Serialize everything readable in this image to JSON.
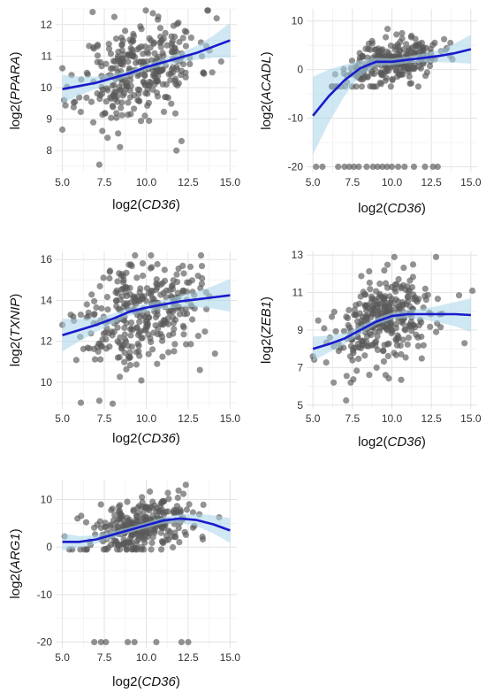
{
  "chart_data": [
    {
      "type": "scatter",
      "gene": "PPARA",
      "xlabel": {
        "prefix": "log2(",
        "gene": "CD36",
        "suffix": ")"
      },
      "ylabel": {
        "prefix": "log2(",
        "gene": "PPARA",
        "suffix": ")"
      },
      "xlim": [
        4.6,
        15.4
      ],
      "ylim": [
        7.3,
        12.5
      ],
      "xticks": [
        5.0,
        7.5,
        10.0,
        12.5,
        15.0
      ],
      "yticks": [
        8,
        9,
        10,
        11,
        12
      ],
      "grid": true,
      "points": {
        "n": 320,
        "seed": 11,
        "xmean": 9.6,
        "xsd": 1.75,
        "xmin": 5.0,
        "xmax": 15.2,
        "noise": 0.75,
        "ymin": 7.5,
        "ymax": 12.45
      },
      "extra_points": [
        [
          7.2,
          7.55
        ],
        [
          11.8,
          8.0
        ],
        [
          12.1,
          8.3
        ],
        [
          6.8,
          12.4
        ],
        [
          14.2,
          12.2
        ],
        [
          5.1,
          9.6
        ]
      ],
      "fit": [
        [
          5.0,
          9.95
        ],
        [
          6.0,
          10.05
        ],
        [
          7.0,
          10.15
        ],
        [
          8.0,
          10.3
        ],
        [
          9.0,
          10.45
        ],
        [
          10.0,
          10.65
        ],
        [
          11.0,
          10.8
        ],
        [
          12.0,
          10.95
        ],
        [
          13.0,
          11.1
        ],
        [
          14.0,
          11.3
        ],
        [
          15.0,
          11.5
        ]
      ],
      "band": [
        0.45,
        0.3,
        0.2,
        0.13,
        0.1,
        0.1,
        0.12,
        0.15,
        0.22,
        0.35,
        0.55
      ],
      "colors": {
        "points": "#595959",
        "fit": "#1a1acc",
        "band": "#a9d6ea"
      }
    },
    {
      "type": "scatter",
      "gene": "ACADL",
      "xlabel": {
        "prefix": "log2(",
        "gene": "CD36",
        "suffix": ")"
      },
      "ylabel": {
        "prefix": "log2(",
        "gene": "ACADL",
        "suffix": ")"
      },
      "xlim": [
        4.6,
        15.4
      ],
      "ylim": [
        -21.2,
        12.5
      ],
      "xticks": [
        5.0,
        7.5,
        10.0,
        12.5,
        15.0
      ],
      "yticks": [
        -20,
        -10,
        0,
        10
      ],
      "grid": true,
      "points": {
        "n": 270,
        "seed": 23,
        "xmean": 9.8,
        "xsd": 1.6,
        "xmin": 6.2,
        "xmax": 15.0,
        "noise": 2.2,
        "ymin": -3.5,
        "ymax": 9.5
      },
      "extra_points": [
        [
          5.2,
          -20
        ],
        [
          5.6,
          -20
        ],
        [
          6.6,
          -20
        ],
        [
          7.0,
          -20
        ],
        [
          7.3,
          -20
        ],
        [
          7.6,
          -20
        ],
        [
          7.9,
          -20
        ],
        [
          8.4,
          -20
        ],
        [
          8.8,
          -20
        ],
        [
          9.1,
          -20
        ],
        [
          9.4,
          -20
        ],
        [
          9.7,
          -20
        ],
        [
          10.0,
          -20
        ],
        [
          10.4,
          -20
        ],
        [
          10.8,
          -20
        ],
        [
          11.4,
          -20
        ],
        [
          12.1,
          -20
        ],
        [
          12.6,
          -20
        ],
        [
          12.9,
          -20
        ]
      ],
      "fit": [
        [
          5.0,
          -9.5
        ],
        [
          6.0,
          -5.5
        ],
        [
          7.0,
          -2.2
        ],
        [
          8.0,
          0.3
        ],
        [
          9.0,
          1.6
        ],
        [
          10.0,
          1.6
        ],
        [
          11.0,
          2.0
        ],
        [
          12.0,
          2.4
        ],
        [
          13.0,
          2.8
        ],
        [
          14.0,
          3.4
        ],
        [
          15.0,
          4.2
        ]
      ],
      "band": [
        8.0,
        5.5,
        3.2,
        1.6,
        0.8,
        0.7,
        0.7,
        0.9,
        1.3,
        2.0,
        3.0
      ],
      "colors": {
        "points": "#595959",
        "fit": "#1a1acc",
        "band": "#a9d6ea"
      }
    },
    {
      "type": "scatter",
      "gene": "TXNIP",
      "xlabel": {
        "prefix": "log2(",
        "gene": "CD36",
        "suffix": ")"
      },
      "ylabel": {
        "prefix": "log2(",
        "gene": "TXNIP",
        "suffix": ")"
      },
      "xlim": [
        4.6,
        15.4
      ],
      "ylim": [
        8.7,
        16.4
      ],
      "xticks": [
        5.0,
        7.5,
        10.0,
        12.5,
        15.0
      ],
      "yticks": [
        10,
        12,
        14,
        16
      ],
      "grid": true,
      "points": {
        "n": 320,
        "seed": 37,
        "xmean": 9.7,
        "xsd": 1.7,
        "xmin": 5.0,
        "xmax": 15.2,
        "noise": 1.25,
        "ymin": 9.0,
        "ymax": 16.2
      },
      "extra_points": [
        [
          6.1,
          9.0
        ],
        [
          7.2,
          9.1
        ],
        [
          8.0,
          8.95
        ],
        [
          5.5,
          13.3
        ],
        [
          14.1,
          11.4
        ],
        [
          13.2,
          10.6
        ]
      ],
      "fit": [
        [
          5.0,
          12.3
        ],
        [
          6.0,
          12.55
        ],
        [
          7.0,
          12.8
        ],
        [
          8.0,
          13.1
        ],
        [
          9.0,
          13.45
        ],
        [
          10.0,
          13.65
        ],
        [
          11.0,
          13.8
        ],
        [
          12.0,
          13.95
        ],
        [
          13.0,
          14.05
        ],
        [
          14.0,
          14.15
        ],
        [
          15.0,
          14.25
        ]
      ],
      "band": [
        0.8,
        0.55,
        0.35,
        0.25,
        0.2,
        0.2,
        0.22,
        0.28,
        0.38,
        0.55,
        0.8
      ],
      "colors": {
        "points": "#595959",
        "fit": "#1a1acc",
        "band": "#a9d6ea"
      }
    },
    {
      "type": "scatter",
      "gene": "ZEB1",
      "xlabel": {
        "prefix": "log2(",
        "gene": "CD36",
        "suffix": ")"
      },
      "ylabel": {
        "prefix": "log2(",
        "gene": "ZEB1",
        "suffix": ")"
      },
      "xlim": [
        4.6,
        15.4
      ],
      "ylim": [
        4.8,
        13.2
      ],
      "xticks": [
        5.0,
        7.5,
        10.0,
        12.5,
        15.0
      ],
      "yticks": [
        5,
        7,
        9,
        11,
        13
      ],
      "grid": true,
      "points": {
        "n": 320,
        "seed": 53,
        "xmean": 9.6,
        "xsd": 1.7,
        "xmin": 5.0,
        "xmax": 15.2,
        "noise": 1.15,
        "ymin": 6.2,
        "ymax": 12.9
      },
      "extra_points": [
        [
          7.1,
          5.25
        ],
        [
          12.8,
          12.9
        ],
        [
          15.1,
          11.1
        ],
        [
          5.0,
          7.6
        ],
        [
          14.6,
          8.3
        ]
      ],
      "fit": [
        [
          5.0,
          8.0
        ],
        [
          6.0,
          8.25
        ],
        [
          7.0,
          8.55
        ],
        [
          8.0,
          9.0
        ],
        [
          9.0,
          9.45
        ],
        [
          10.0,
          9.75
        ],
        [
          11.0,
          9.85
        ],
        [
          12.0,
          9.85
        ],
        [
          13.0,
          9.85
        ],
        [
          14.0,
          9.85
        ],
        [
          15.0,
          9.8
        ]
      ],
      "band": [
        0.65,
        0.45,
        0.3,
        0.22,
        0.18,
        0.18,
        0.22,
        0.3,
        0.45,
        0.65,
        0.9
      ],
      "colors": {
        "points": "#595959",
        "fit": "#1a1acc",
        "band": "#a9d6ea"
      }
    },
    {
      "type": "scatter",
      "gene": "ARG1",
      "xlabel": {
        "prefix": "log2(",
        "gene": "CD36",
        "suffix": ")"
      },
      "ylabel": {
        "prefix": "log2(",
        "gene": "ARG1",
        "suffix": ")"
      },
      "xlim": [
        4.6,
        15.4
      ],
      "ylim": [
        -21.2,
        14.2
      ],
      "xticks": [
        5.0,
        7.5,
        10.0,
        12.5,
        15.0
      ],
      "yticks": [
        -20,
        -10,
        0,
        10
      ],
      "grid": true,
      "points": {
        "n": 300,
        "seed": 71,
        "xmean": 9.7,
        "xsd": 1.7,
        "xmin": 5.0,
        "xmax": 15.2,
        "noise": 3.0,
        "ymin": -0.5,
        "ymax": 13.8
      },
      "extra_points": [
        [
          6.9,
          -20
        ],
        [
          7.3,
          -20
        ],
        [
          7.6,
          -20
        ],
        [
          8.9,
          -20
        ],
        [
          9.3,
          -20
        ],
        [
          10.6,
          -20
        ],
        [
          12.1,
          -20
        ],
        [
          12.5,
          -20
        ]
      ],
      "fit": [
        [
          5.0,
          1.1
        ],
        [
          6.0,
          1.1
        ],
        [
          7.0,
          1.6
        ],
        [
          8.0,
          2.6
        ],
        [
          9.0,
          3.6
        ],
        [
          10.0,
          4.6
        ],
        [
          11.0,
          5.6
        ],
        [
          12.0,
          6.0
        ],
        [
          13.0,
          5.7
        ],
        [
          14.0,
          4.8
        ],
        [
          15.0,
          3.5
        ]
      ],
      "band": [
        1.8,
        1.2,
        0.9,
        0.7,
        0.6,
        0.6,
        0.7,
        0.9,
        1.3,
        1.9,
        2.6
      ],
      "colors": {
        "points": "#595959",
        "fit": "#1a1acc",
        "band": "#a9d6ea"
      }
    }
  ]
}
